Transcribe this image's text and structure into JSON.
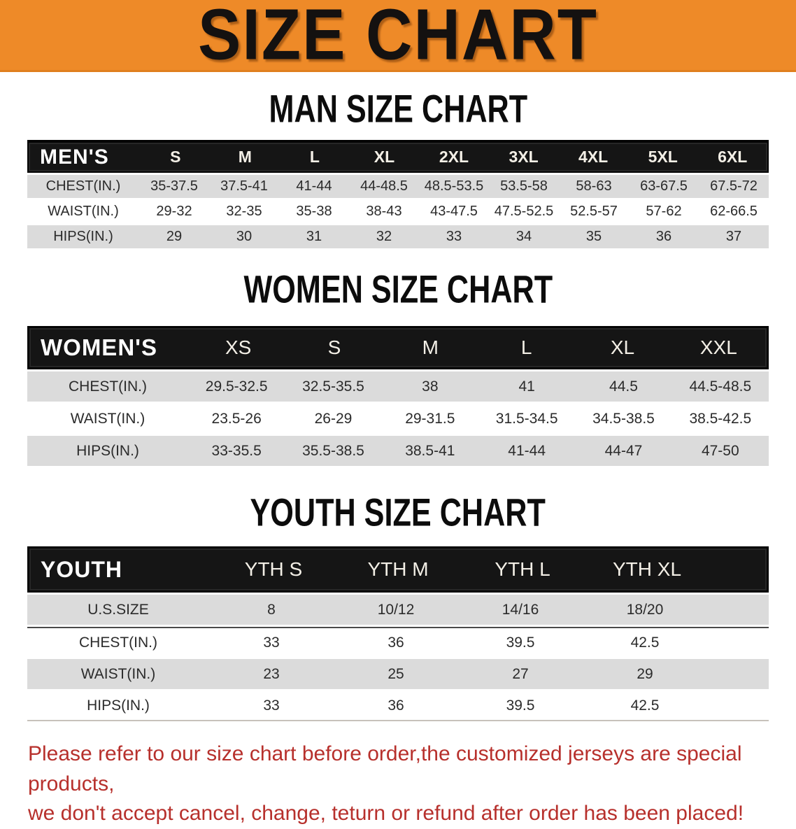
{
  "banner": {
    "title": "SIZE CHART",
    "bg_color": "#EE8A28"
  },
  "colors": {
    "table_header_bg": "#151515",
    "row_alt_bg": "#DBDBDB",
    "footer_text": "#B7302C"
  },
  "headings": {
    "man": "MAN SIZE CHART",
    "women": "WOMEN SIZE CHART",
    "youth": "YOUTH SIZE CHART"
  },
  "chart_data": [
    {
      "type": "table",
      "title": "MAN SIZE CHART",
      "corner_label": "MEN'S",
      "columns": [
        "S",
        "M",
        "L",
        "XL",
        "2XL",
        "3XL",
        "4XL",
        "5XL",
        "6XL"
      ],
      "rows": [
        {
          "label": "CHEST(IN.)",
          "values": [
            "35-37.5",
            "37.5-41",
            "41-44",
            "44-48.5",
            "48.5-53.5",
            "53.5-58",
            "58-63",
            "63-67.5",
            "67.5-72"
          ]
        },
        {
          "label": "WAIST(IN.)",
          "values": [
            "29-32",
            "32-35",
            "35-38",
            "38-43",
            "43-47.5",
            "47.5-52.5",
            "52.5-57",
            "57-62",
            "62-66.5"
          ]
        },
        {
          "label": "HIPS(IN.)",
          "values": [
            "29",
            "30",
            "31",
            "32",
            "33",
            "34",
            "35",
            "36",
            "37"
          ]
        }
      ]
    },
    {
      "type": "table",
      "title": "WOMEN SIZE CHART",
      "corner_label": "WOMEN'S",
      "columns": [
        "XS",
        "S",
        "M",
        "L",
        "XL",
        "XXL"
      ],
      "rows": [
        {
          "label": "CHEST(IN.)",
          "values": [
            "29.5-32.5",
            "32.5-35.5",
            "38",
            "41",
            "44.5",
            "44.5-48.5"
          ]
        },
        {
          "label": "WAIST(IN.)",
          "values": [
            "23.5-26",
            "26-29",
            "29-31.5",
            "31.5-34.5",
            "34.5-38.5",
            "38.5-42.5"
          ]
        },
        {
          "label": "HIPS(IN.)",
          "values": [
            "33-35.5",
            "35.5-38.5",
            "38.5-41",
            "41-44",
            "44-47",
            "47-50"
          ]
        }
      ]
    },
    {
      "type": "table",
      "title": "YOUTH SIZE CHART",
      "corner_label": "YOUTH",
      "columns": [
        "YTH S",
        "YTH M",
        "YTH L",
        "YTH XL"
      ],
      "rows": [
        {
          "label": "U.S.SIZE",
          "values": [
            "8",
            "10/12",
            "14/16",
            "18/20"
          ]
        },
        {
          "label": "CHEST(IN.)",
          "values": [
            "33",
            "36",
            "39.5",
            "42.5"
          ]
        },
        {
          "label": "WAIST(IN.)",
          "values": [
            "23",
            "25",
            "27",
            "29"
          ]
        },
        {
          "label": "HIPS(IN.)",
          "values": [
            "33",
            "36",
            "39.5",
            "42.5"
          ]
        }
      ]
    }
  ],
  "footer": {
    "line1": "Please refer to our size chart before order,the customized jerseys are special products,",
    "line2": "we don't accept cancel, change, teturn or refund after order has been placed!"
  }
}
